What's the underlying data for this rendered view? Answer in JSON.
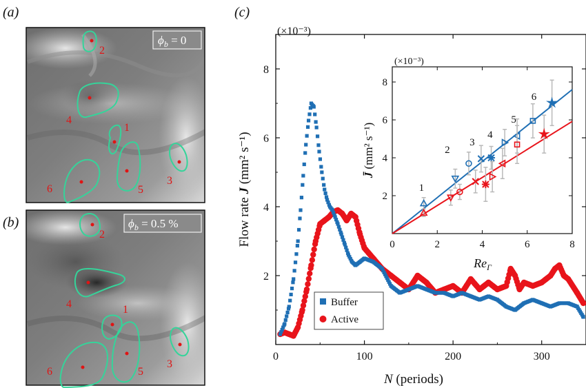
{
  "panels": {
    "a": {
      "label": "(a)",
      "phi_label": "ϕ",
      "phi_sub": "b",
      "phi_value": " = 0"
    },
    "b": {
      "label": "(b)",
      "phi_label": "ϕ",
      "phi_sub": "b",
      "phi_value": " = 0.5 %"
    },
    "c": {
      "label": "(c)"
    }
  },
  "vortex_labels_a": [
    "1",
    "2",
    "3",
    "4",
    "5",
    "6"
  ],
  "vortex_labels_b": [
    "1",
    "2",
    "3",
    "4",
    "5",
    "6"
  ],
  "colors": {
    "buffer": "#1f6fb4",
    "active": "#e8141b",
    "contour": "#35d49a",
    "vortex_label": "#e01414"
  },
  "chart_data": [
    {
      "type": "scatter",
      "multiplier": "(×10⁻³)",
      "xlabel_var": "N",
      "xlabel_unit": " (periods)",
      "ylabel": "Flow rate ",
      "ylabel_var": "J",
      "ylabel_unit": " (mm² s⁻¹)",
      "xlim": [
        0,
        350
      ],
      "ylim": [
        0,
        9
      ],
      "xticks": [
        "0",
        "100",
        "200",
        "300"
      ],
      "yticks": [
        "2",
        "4",
        "6",
        "8"
      ],
      "legend_position": "bottom-left",
      "series": [
        {
          "name": "Buffer",
          "x": [
            5,
            10,
            15,
            20,
            25,
            28,
            31,
            34,
            37,
            40,
            43,
            46,
            49,
            52,
            55,
            58,
            61,
            64,
            67,
            70,
            74,
            78,
            82,
            86,
            90,
            95,
            100,
            110,
            120,
            130,
            140,
            150,
            160,
            170,
            180,
            190,
            200,
            210,
            220,
            230,
            240,
            250,
            260,
            270,
            280,
            290,
            300,
            310,
            320,
            330,
            340,
            347
          ],
          "y": [
            0.3,
            0.6,
            1.1,
            1.9,
            3.0,
            3.9,
            4.9,
            5.8,
            6.5,
            7.0,
            6.9,
            6.3,
            5.6,
            5.0,
            4.5,
            4.2,
            4.0,
            3.9,
            3.7,
            3.5,
            3.2,
            2.9,
            2.6,
            2.4,
            2.3,
            2.4,
            2.5,
            2.4,
            2.2,
            1.7,
            1.5,
            1.6,
            1.7,
            1.6,
            1.5,
            1.5,
            1.4,
            1.5,
            1.4,
            1.3,
            1.4,
            1.3,
            1.1,
            1.0,
            1.2,
            1.3,
            1.2,
            1.1,
            1.2,
            1.2,
            1.1,
            0.8
          ]
        },
        {
          "name": "Active",
          "x": [
            5,
            10,
            15,
            20,
            25,
            30,
            35,
            40,
            45,
            50,
            55,
            60,
            65,
            70,
            75,
            80,
            85,
            90,
            95,
            100,
            110,
            120,
            130,
            140,
            150,
            160,
            170,
            180,
            190,
            200,
            210,
            220,
            230,
            240,
            250,
            260,
            265,
            270,
            275,
            280,
            290,
            300,
            310,
            315,
            320,
            325,
            330,
            340,
            347
          ],
          "y": [
            0.3,
            0.35,
            0.3,
            0.25,
            0.5,
            1.0,
            1.6,
            2.3,
            3.0,
            3.5,
            3.6,
            3.7,
            3.85,
            3.9,
            3.8,
            3.6,
            3.8,
            3.7,
            3.2,
            2.8,
            2.5,
            2.2,
            2.0,
            1.8,
            1.6,
            2.0,
            1.8,
            1.5,
            1.6,
            1.7,
            1.5,
            1.9,
            1.6,
            1.8,
            1.6,
            1.7,
            2.2,
            2.0,
            1.6,
            1.8,
            1.7,
            1.8,
            2.0,
            2.2,
            2.3,
            2.0,
            1.9,
            1.5,
            1.2
          ]
        }
      ]
    },
    {
      "type": "scatter",
      "multiplier": "(×10⁻³)",
      "xlabel": "Re",
      "xlabel_sub": "Γ",
      "ylabel": "J̄",
      "ylabel_unit": " (mm² s⁻¹)",
      "xlim": [
        0,
        8
      ],
      "ylim": [
        0,
        8.8
      ],
      "xticks": [
        "0",
        "2",
        "4",
        "6",
        "8"
      ],
      "yticks": [
        "2",
        "4",
        "6",
        "8"
      ],
      "point_labels": [
        {
          "text": "1",
          "x": 1.3,
          "y": 2.25
        },
        {
          "text": "2",
          "x": 2.45,
          "y": 4.25
        },
        {
          "text": "3",
          "x": 3.55,
          "y": 4.65
        },
        {
          "text": "4",
          "x": 4.35,
          "y": 5.05
        },
        {
          "text": "5",
          "x": 5.4,
          "y": 5.85
        },
        {
          "text": "6",
          "x": 6.3,
          "y": 7.05
        }
      ],
      "fit_lines": [
        {
          "series": "Buffer",
          "slope": 0.95
        },
        {
          "series": "Active",
          "slope": 0.74
        }
      ],
      "series": [
        {
          "name": "Buffer",
          "points": [
            {
              "x": 1.4,
              "y": 1.6,
              "err": 0.3,
              "marker": "triangle-up"
            },
            {
              "x": 2.8,
              "y": 2.9,
              "err": 0.5,
              "marker": "triangle-down"
            },
            {
              "x": 3.4,
              "y": 3.7,
              "err": 0.6,
              "marker": "circle"
            },
            {
              "x": 3.95,
              "y": 3.95,
              "err": 0.7,
              "marker": "x"
            },
            {
              "x": 4.4,
              "y": 4.0,
              "err": 0.6,
              "marker": "star"
            },
            {
              "x": 5.0,
              "y": 4.8,
              "err": 0.7,
              "marker": "triangle-right"
            },
            {
              "x": 5.55,
              "y": 5.15,
              "err": 0.9,
              "marker": "triangle-left"
            },
            {
              "x": 6.25,
              "y": 5.95,
              "err": 0.9,
              "marker": "square"
            },
            {
              "x": 7.1,
              "y": 6.9,
              "err": 1.2,
              "marker": "star6"
            }
          ]
        },
        {
          "name": "Active",
          "points": [
            {
              "x": 1.4,
              "y": 1.1,
              "err": 0.2,
              "marker": "triangle-up"
            },
            {
              "x": 2.6,
              "y": 1.9,
              "err": 0.4,
              "marker": "triangle-down"
            },
            {
              "x": 3.0,
              "y": 2.2,
              "err": 0.4,
              "marker": "circle"
            },
            {
              "x": 3.7,
              "y": 2.75,
              "err": 0.6,
              "marker": "x"
            },
            {
              "x": 4.15,
              "y": 2.6,
              "err": 0.9,
              "marker": "star"
            },
            {
              "x": 4.45,
              "y": 3.0,
              "err": 0.8,
              "marker": "triangle-right"
            },
            {
              "x": 4.9,
              "y": 3.7,
              "err": 0.8,
              "marker": "triangle-left"
            },
            {
              "x": 5.55,
              "y": 4.7,
              "err": 1.0,
              "marker": "square"
            },
            {
              "x": 6.75,
              "y": 5.25,
              "err": 1.0,
              "marker": "star6"
            }
          ]
        }
      ]
    }
  ]
}
